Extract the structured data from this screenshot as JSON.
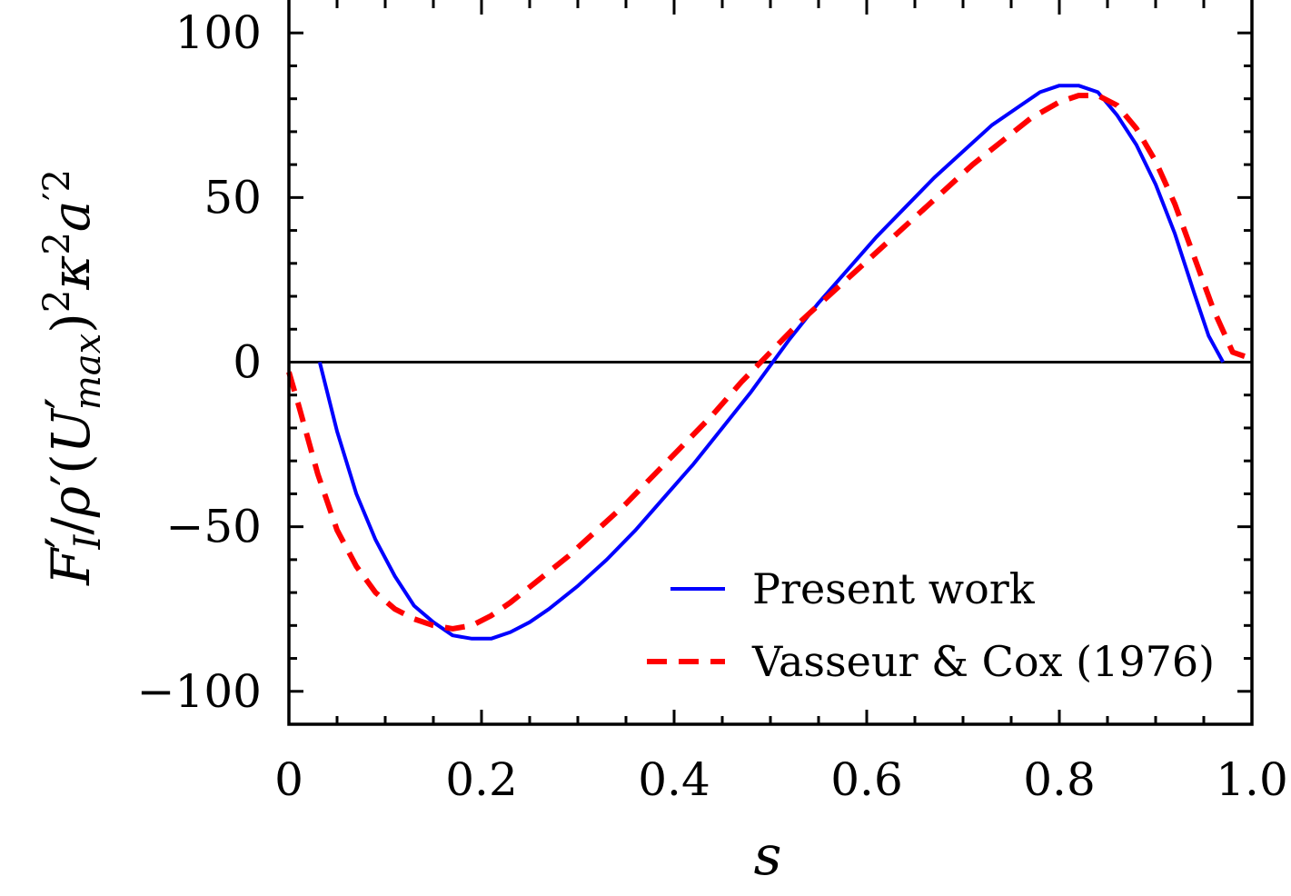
{
  "chart_data": {
    "type": "line",
    "title": "",
    "xlabel": "s",
    "ylabel": {
      "F": "F",
      "prime1": "′",
      "sub_I": "I",
      "slash1": "/",
      "rho": "ρ",
      "prime2": "′",
      "lparen": "(",
      "U": "U",
      "prime3": "′",
      "sub_max": "max",
      "rparen": ")",
      "sup_2a": "2",
      "kappa": "κ",
      "sup_2b": "2",
      "a": "a",
      "sup_prime2": "′2"
    },
    "xlim": [
      0,
      1.0
    ],
    "ylim": [
      -110,
      110
    ],
    "xticks": [
      0,
      0.2,
      0.4,
      0.6,
      0.8,
      1.0
    ],
    "xtick_labels": [
      "0",
      "0.2",
      "0.4",
      "0.6",
      "0.8",
      "1.0"
    ],
    "yticks": [
      -100,
      -50,
      0,
      50,
      100
    ],
    "ytick_labels": [
      "−100",
      "−50",
      "0",
      "50",
      "100"
    ],
    "grid": false,
    "legend_position": "bottom-right",
    "zero_line": true,
    "series": [
      {
        "name": "Present work",
        "color": "#0000ff",
        "style": "solid",
        "x": [
          0.032,
          0.05,
          0.07,
          0.09,
          0.11,
          0.13,
          0.15,
          0.17,
          0.19,
          0.21,
          0.23,
          0.25,
          0.27,
          0.3,
          0.33,
          0.36,
          0.39,
          0.42,
          0.45,
          0.48,
          0.5,
          0.52,
          0.55,
          0.58,
          0.61,
          0.64,
          0.67,
          0.7,
          0.73,
          0.76,
          0.78,
          0.8,
          0.82,
          0.84,
          0.86,
          0.88,
          0.9,
          0.92,
          0.94,
          0.955,
          0.97
        ],
        "y": [
          0,
          -21,
          -40,
          -54,
          -65,
          -74,
          -79,
          -83,
          -84,
          -84,
          -82,
          -79,
          -75,
          -68,
          -60,
          -51,
          -41,
          -31,
          -20,
          -9,
          -1,
          7,
          18,
          28,
          38,
          47,
          56,
          64,
          72,
          78,
          82,
          84,
          84,
          82,
          75,
          66,
          54,
          39,
          21,
          8,
          0
        ]
      },
      {
        "name": "Vasseur & Cox (1976)",
        "color": "#ff0000",
        "style": "dashed",
        "x": [
          0.0,
          0.01,
          0.03,
          0.05,
          0.07,
          0.09,
          0.11,
          0.13,
          0.15,
          0.17,
          0.19,
          0.21,
          0.23,
          0.26,
          0.29,
          0.32,
          0.35,
          0.38,
          0.41,
          0.44,
          0.47,
          0.5,
          0.53,
          0.56,
          0.59,
          0.62,
          0.65,
          0.68,
          0.71,
          0.74,
          0.77,
          0.8,
          0.82,
          0.84,
          0.86,
          0.88,
          0.9,
          0.92,
          0.94,
          0.96,
          0.98,
          1.0
        ],
        "y": [
          -3,
          -13,
          -34,
          -51,
          -62,
          -70,
          -75,
          -78,
          -80,
          -81,
          -80,
          -77,
          -73,
          -66,
          -59,
          -51,
          -43,
          -34,
          -25,
          -16,
          -6,
          3,
          12,
          20,
          28,
          36,
          44,
          52,
          60,
          67,
          74,
          79,
          81,
          81,
          78,
          71,
          61,
          48,
          32,
          16,
          3,
          1
        ]
      }
    ]
  }
}
